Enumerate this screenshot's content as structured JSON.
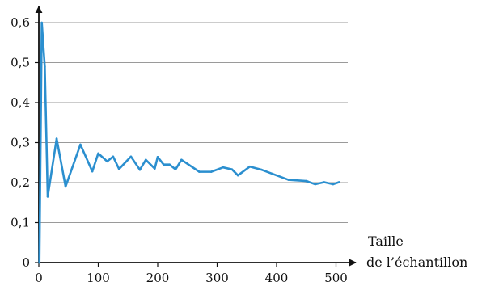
{
  "chart_data": {
    "type": "line",
    "title": "",
    "xlabel": "Taille de l'échantillon",
    "xlabel_lines": [
      "Taille",
      "de l’échantillon"
    ],
    "ylabel": "",
    "xlim": [
      0,
      510
    ],
    "ylim": [
      0,
      0.65
    ],
    "x_ticks": [
      0,
      100,
      200,
      300,
      400,
      500
    ],
    "x_tick_labels": [
      "0",
      "100",
      "200",
      "300",
      "400",
      "500"
    ],
    "y_ticks": [
      0,
      0.1,
      0.2,
      0.3,
      0.4,
      0.5,
      0.6
    ],
    "y_tick_labels": [
      "0",
      "0,1",
      "0,2",
      "0,3",
      "0,4",
      "0,5",
      "0,6"
    ],
    "grid": "horizontal",
    "line_color": "#2b8fcf",
    "grid_color": "#9a9a9a",
    "series": [
      {
        "x": [
          1,
          5,
          10,
          15,
          30,
          45,
          70,
          90,
          100,
          115,
          125,
          135,
          155,
          170,
          180,
          195,
          200,
          210,
          220,
          230,
          240,
          270,
          290,
          310,
          325,
          335,
          355,
          375,
          420,
          450,
          465,
          480,
          495,
          505
        ],
        "values": [
          0,
          0.6,
          0.49,
          0.165,
          0.31,
          0.19,
          0.295,
          0.228,
          0.273,
          0.253,
          0.265,
          0.234,
          0.265,
          0.232,
          0.257,
          0.235,
          0.264,
          0.245,
          0.245,
          0.233,
          0.257,
          0.227,
          0.227,
          0.238,
          0.233,
          0.218,
          0.24,
          0.232,
          0.207,
          0.204,
          0.196,
          0.201,
          0.196,
          0.201
        ]
      }
    ]
  }
}
